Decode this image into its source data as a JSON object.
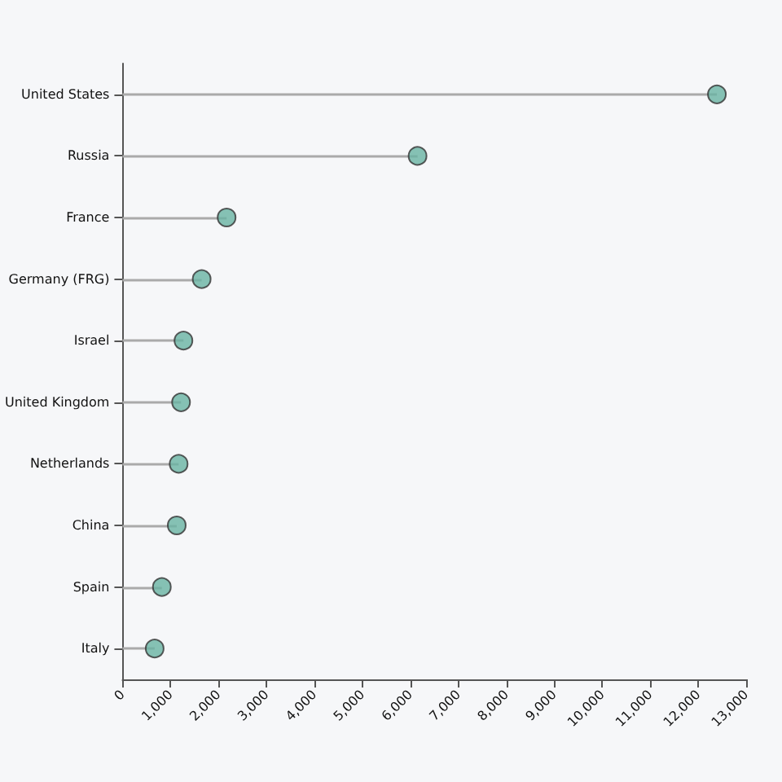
{
  "chart_data": {
    "type": "lollipop",
    "orientation": "horizontal",
    "categories": [
      "United States",
      "Russia",
      "France",
      "Germany (FRG)",
      "Israel",
      "United Kingdom",
      "Netherlands",
      "China",
      "Spain",
      "Italy"
    ],
    "values": [
      12390,
      6150,
      2170,
      1650,
      1270,
      1220,
      1170,
      1130,
      820,
      670
    ],
    "color": "#69b3a2",
    "xlim": [
      0,
      13000
    ],
    "xticks": [
      0,
      {
        "value": 1000,
        "label": "1,000"
      },
      {
        "value": 2000,
        "label": "2,000"
      },
      {
        "value": 3000,
        "label": "3,000"
      },
      {
        "value": 4000,
        "label": "4,000"
      },
      {
        "value": 5000,
        "label": "5,000"
      },
      {
        "value": 6000,
        "label": "6,000"
      },
      {
        "value": 7000,
        "label": "7,000"
      },
      {
        "value": 8000,
        "label": "8,000"
      },
      {
        "value": 9000,
        "label": "9,000"
      },
      {
        "value": 10000,
        "label": "10,000"
      },
      {
        "value": 11000,
        "label": "11,000"
      },
      {
        "value": 12000,
        "label": "12,000"
      },
      {
        "value": 13000,
        "label": "13,000"
      }
    ],
    "grid": false,
    "marker": "circle"
  }
}
